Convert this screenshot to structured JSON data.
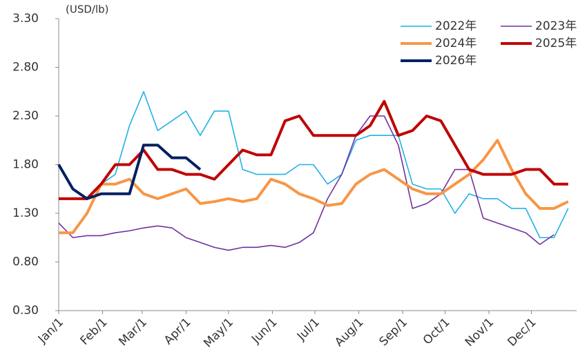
{
  "chart_data": {
    "type": "line",
    "y_label": "(USD/lb)",
    "x": [
      0,
      10,
      20,
      30,
      40,
      50,
      60,
      70,
      80,
      90,
      100,
      110,
      120,
      130,
      140,
      150,
      160,
      170,
      180,
      190,
      200,
      210,
      220,
      230,
      240,
      250,
      260,
      270,
      280,
      290,
      300,
      310,
      320,
      330,
      340,
      350,
      360
    ],
    "xlim": [
      0,
      365
    ],
    "xticks": [
      {
        "value": 0,
        "label": "Jan/1"
      },
      {
        "value": 31,
        "label": "Feb/1"
      },
      {
        "value": 59,
        "label": "Mar/1"
      },
      {
        "value": 90,
        "label": "Apr/1"
      },
      {
        "value": 120,
        "label": "May/1"
      },
      {
        "value": 151,
        "label": "Jun/1"
      },
      {
        "value": 181,
        "label": "Jul/1"
      },
      {
        "value": 212,
        "label": "Aug/1"
      },
      {
        "value": 243,
        "label": "Sep/1"
      },
      {
        "value": 273,
        "label": "Oct/1"
      },
      {
        "value": 304,
        "label": "Nov/1"
      },
      {
        "value": 334,
        "label": "Dec/1"
      }
    ],
    "ylim": [
      0.3,
      3.3
    ],
    "yticks": [
      {
        "value": 0.3,
        "label": "0.30"
      },
      {
        "value": 0.8,
        "label": "0.80"
      },
      {
        "value": 1.3,
        "label": "1.30"
      },
      {
        "value": 1.8,
        "label": "1.80"
      },
      {
        "value": 2.3,
        "label": "2.30"
      },
      {
        "value": 2.8,
        "label": "2.80"
      },
      {
        "value": 3.3,
        "label": "3.30"
      }
    ],
    "grid": false,
    "legend": "top-right",
    "series": [
      {
        "name": "2022年",
        "color": "#1fb0e8",
        "values": [
          1.45,
          1.45,
          1.45,
          1.6,
          1.7,
          2.2,
          2.55,
          2.15,
          2.25,
          2.35,
          2.1,
          2.35,
          2.35,
          1.75,
          1.7,
          1.7,
          1.7,
          1.8,
          1.8,
          1.6,
          1.7,
          2.05,
          2.1,
          2.1,
          2.1,
          1.6,
          1.55,
          1.55,
          1.3,
          1.5,
          1.45,
          1.45,
          1.35,
          1.35,
          1.05,
          1.05,
          1.35
        ]
      },
      {
        "name": "2023年",
        "color": "#7030a0",
        "values": [
          1.2,
          1.05,
          1.07,
          1.07,
          1.1,
          1.12,
          1.15,
          1.17,
          1.15,
          1.05,
          1.0,
          0.95,
          0.92,
          0.95,
          0.95,
          0.97,
          0.95,
          1.0,
          1.1,
          1.45,
          1.7,
          2.1,
          2.3,
          2.3,
          2.0,
          1.35,
          1.4,
          1.5,
          1.75,
          1.75,
          1.25,
          1.2,
          1.15,
          1.1,
          0.98,
          1.08,
          null
        ]
      },
      {
        "name": "2024年",
        "color": "#f79646",
        "values": [
          1.1,
          1.1,
          1.3,
          1.6,
          1.6,
          1.65,
          1.5,
          1.45,
          1.5,
          1.55,
          1.4,
          1.42,
          1.45,
          1.42,
          1.45,
          1.65,
          1.6,
          1.5,
          1.45,
          1.38,
          1.4,
          1.6,
          1.7,
          1.75,
          1.65,
          1.55,
          1.5,
          1.5,
          1.6,
          1.7,
          1.85,
          2.05,
          1.75,
          1.5,
          1.35,
          1.35,
          1.42
        ]
      },
      {
        "name": "2025年",
        "color": "#c00000",
        "values": [
          1.45,
          1.45,
          1.45,
          1.6,
          1.8,
          1.8,
          1.95,
          1.75,
          1.75,
          1.7,
          1.7,
          1.65,
          1.8,
          1.95,
          1.9,
          1.9,
          2.25,
          2.3,
          2.1,
          2.1,
          2.1,
          2.1,
          2.2,
          2.45,
          2.1,
          2.15,
          2.3,
          2.25,
          2.0,
          1.75,
          1.7,
          1.7,
          1.7,
          1.75,
          1.75,
          1.6,
          1.6
        ]
      },
      {
        "name": "2026年",
        "color": "#002060",
        "values": [
          1.8,
          1.55,
          1.45,
          1.5,
          1.5,
          1.5,
          2.0,
          2.0,
          1.87,
          1.87,
          1.75,
          null,
          null,
          null,
          null,
          null,
          null,
          null,
          null,
          null,
          null,
          null,
          null,
          null,
          null,
          null,
          null,
          null,
          null,
          null,
          null,
          null,
          null,
          null,
          null,
          null,
          null
        ]
      }
    ]
  }
}
